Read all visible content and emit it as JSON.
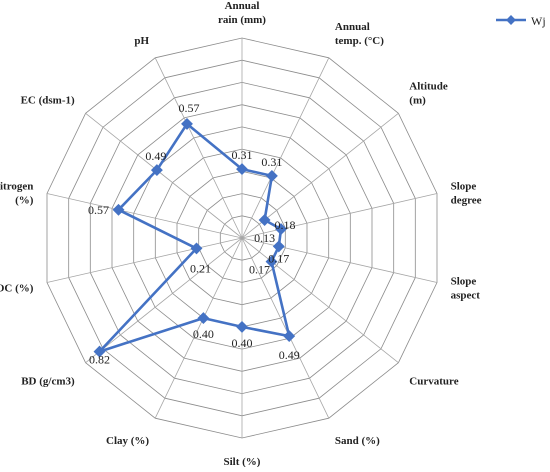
{
  "colors": {
    "series": "#4472C4",
    "grid": "#8c8c8c",
    "spoke": "#a6a6a6",
    "text": "#222222"
  },
  "chart_data": {
    "type": "radar",
    "title": "",
    "categories": [
      "Annual rain (mm)",
      "Annual temp. (°C)",
      "Altitude (m)",
      "Slope degree",
      "Slope aspect",
      "Curvature",
      "Sand (%)",
      "Silt (%)",
      "Clay (%)",
      "BD (g/cm3)",
      "OC (%)",
      "Nitrogen (%)",
      "EC (dsm-1)",
      "pH"
    ],
    "category_label_lines": [
      [
        "Annual",
        "rain (mm)"
      ],
      [
        "Annual",
        "temp. (°C)"
      ],
      [
        "Altitude",
        "(m)"
      ],
      [
        "Slope",
        "degree"
      ],
      [
        "Slope",
        "aspect"
      ],
      [
        "Curvature"
      ],
      [
        "Sand (%)"
      ],
      [
        "Silt (%)"
      ],
      [
        "Clay (%)"
      ],
      [
        "BD (g/cm3)"
      ],
      [
        "OC (%)"
      ],
      [
        "Nitrogen",
        "(%)"
      ],
      [
        "EC (dsm-1)"
      ],
      [
        "pH"
      ]
    ],
    "series": [
      {
        "name": "Wj",
        "values": [
          0.31,
          0.31,
          0.13,
          0.18,
          0.17,
          0.17,
          0.49,
          0.4,
          0.4,
          0.82,
          0.21,
          0.57,
          0.49,
          0.57
        ],
        "labels": [
          "0.31",
          "0.31",
          "0.13",
          "0.18",
          "0.17",
          "0.17",
          "0.49",
          "0.40",
          "0.40",
          "0.82",
          "0.21",
          "0.57",
          "0.49",
          "0.57"
        ]
      }
    ],
    "range": [
      0,
      0.9
    ],
    "ring_step": 0.1,
    "grid": true,
    "legend_position": "top-right"
  }
}
